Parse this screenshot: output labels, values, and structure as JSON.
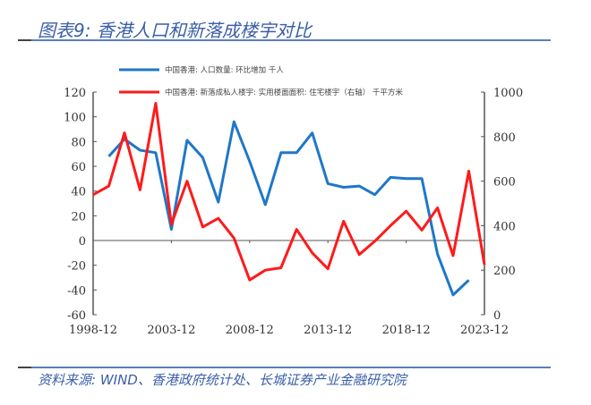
{
  "title": "图表9: 香港人口和新落成楼宇对比",
  "source": "资料来源: WIND、香港政府统计处、长城证券产业金融研究院",
  "chart_data": {
    "type": "line",
    "title": "图表9: 香港人口和新落成楼宇对比",
    "x": [
      1998,
      1999,
      2000,
      2001,
      2002,
      2003,
      2004,
      2005,
      2006,
      2007,
      2008,
      2009,
      2010,
      2011,
      2012,
      2013,
      2014,
      2015,
      2016,
      2017,
      2018,
      2019,
      2020,
      2021,
      2022,
      2023
    ],
    "x_tick_labels": [
      "1998-12",
      "2003-12",
      "2008-12",
      "2013-12",
      "2018-12",
      "2023-12"
    ],
    "y_left": {
      "range": [
        -60,
        120
      ],
      "ticks": [
        -60,
        -40,
        -20,
        0,
        20,
        40,
        60,
        80,
        100,
        120
      ]
    },
    "y_right": {
      "range": [
        0,
        1000
      ],
      "ticks": [
        0,
        200,
        400,
        600,
        800,
        1000
      ]
    },
    "legend_position": "top",
    "grid": false,
    "series": [
      {
        "name": "中国香港: 人口数量: 环比增加 千人",
        "axis": "left",
        "color": "#1f77c8",
        "values": [
          null,
          68,
          82,
          73,
          71,
          9,
          81,
          67,
          31,
          96,
          64,
          29,
          71,
          71,
          87,
          46,
          43,
          44,
          37,
          51,
          50,
          50,
          -11,
          -44,
          -32,
          null
        ]
      },
      {
        "name": "中国香港: 新落成私人楼宇: 实用楼面面积: 住宅楼宇（右轴） 千平方米",
        "axis": "right",
        "color": "#ff1a1a",
        "values": [
          539,
          578,
          817,
          561,
          950,
          406,
          600,
          394,
          433,
          344,
          156,
          200,
          211,
          383,
          278,
          206,
          420,
          270,
          330,
          400,
          465,
          380,
          480,
          265,
          645,
          225
        ]
      }
    ]
  }
}
